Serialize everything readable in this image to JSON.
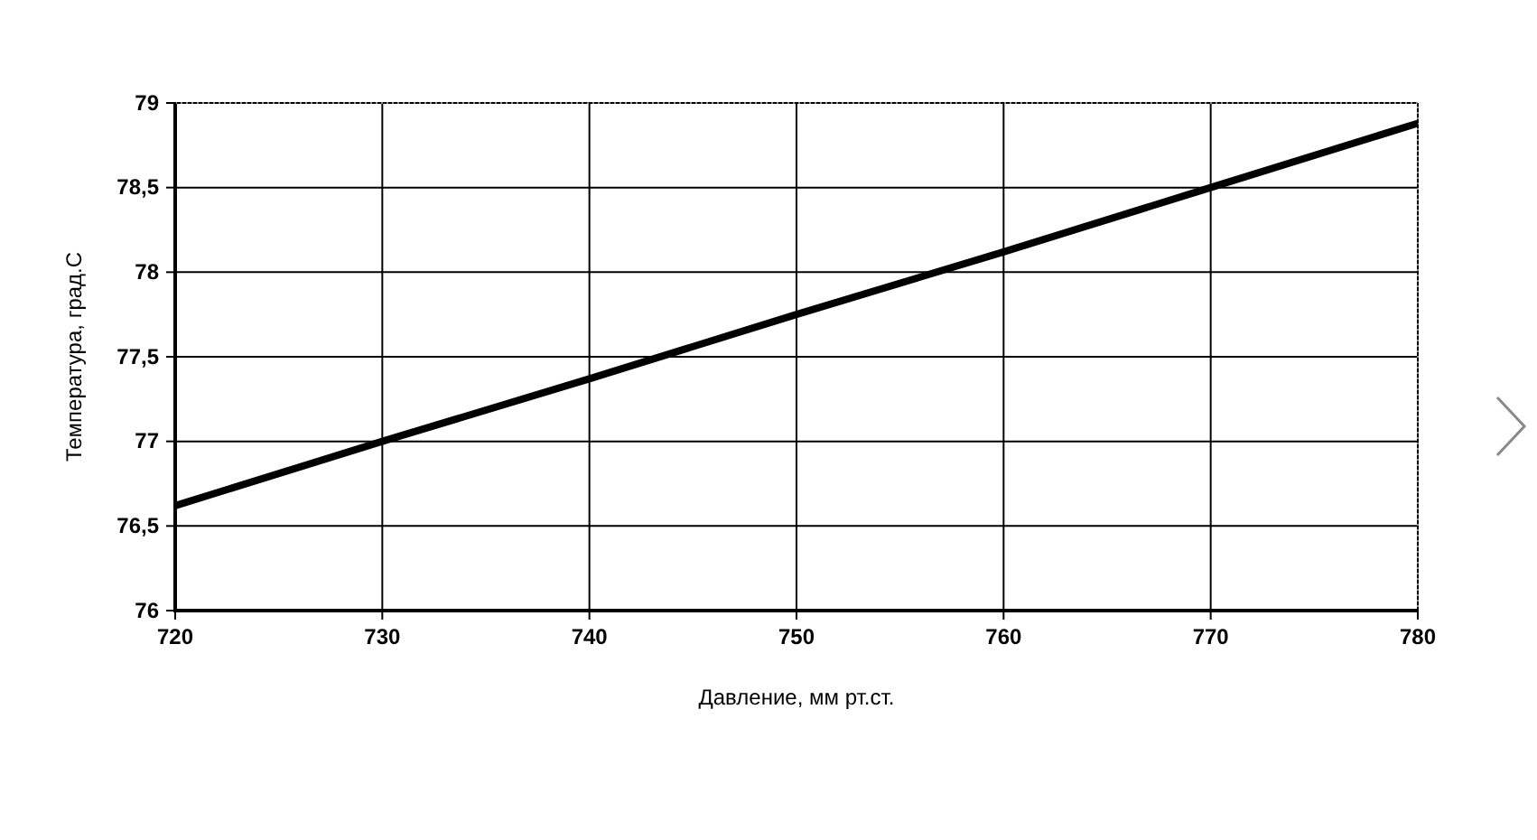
{
  "chart_data": {
    "type": "line",
    "xlabel": "Давление, мм рт.ст.",
    "ylabel": "Температура, град.С",
    "x": [
      720,
      730,
      740,
      750,
      760,
      770,
      780
    ],
    "series": [
      {
        "color": "#000000",
        "values": [
          76.62,
          77.0,
          77.37,
          77.75,
          78.12,
          78.5,
          78.88
        ]
      }
    ],
    "xlim": [
      720,
      780
    ],
    "xticks": [
      720,
      730,
      740,
      750,
      760,
      770,
      780
    ],
    "ylim": [
      76,
      79
    ],
    "yticks": [
      76,
      {
        "value": 76.5,
        "label": "76,5"
      },
      77,
      {
        "value": 77.5,
        "label": "77,5"
      },
      78,
      {
        "value": 78.5,
        "label": "78,5"
      },
      79
    ],
    "grid": true,
    "marker": "none",
    "line_style": "solid"
  }
}
